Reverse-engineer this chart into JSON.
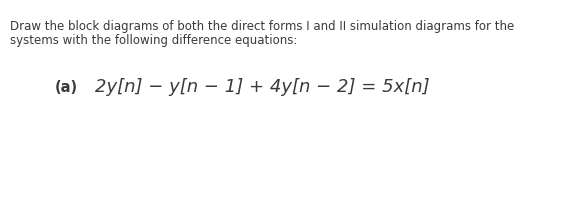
{
  "line1": "Draw the block diagrams of both the direct forms I and II simulation diagrams for the",
  "line2": "systems with the following difference equations:",
  "label": "(a)",
  "equation": "2y[n] − y[n − 1] + 4y[n − 2] = 5x[n]",
  "bg_color": "#ffffff",
  "text_color": "#3a3a3a",
  "header_fontsize": 8.5,
  "label_fontsize": 10.5,
  "eq_fontsize": 13,
  "fig_width": 5.76,
  "fig_height": 2.15,
  "dpi": 100
}
